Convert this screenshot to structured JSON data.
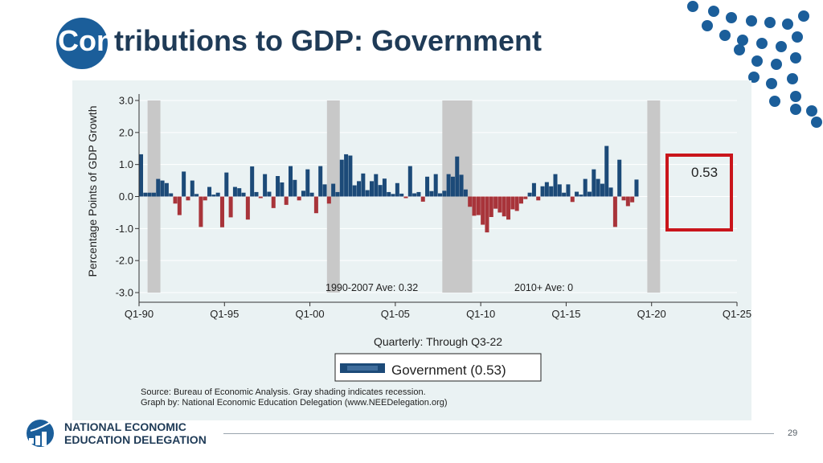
{
  "slide": {
    "title_part1": "Con",
    "title_part2": "tributions to GDP: Government",
    "page_number": "29",
    "org_line1": "NATIONAL ECONOMIC",
    "org_line2": "EDUCATION DELEGATION"
  },
  "colors": {
    "positive": "#1c4a78",
    "negative": "#a8343a",
    "recession": "#c8c8c8",
    "highlight": "#c9151b",
    "accent": "#1b5e9a"
  },
  "chart_data": {
    "type": "bar",
    "y_axis_label": "Percentage Points of GDP Growth",
    "x_axis_title": "Quarterly: Through Q3-22",
    "ylim": [
      -3.0,
      3.0
    ],
    "y_ticks": [
      "3.0",
      "2.0",
      "1.0",
      "0.0",
      "-1.0",
      "-2.0",
      "-3.0"
    ],
    "x_ticks": [
      "Q1-90",
      "Q1-95",
      "Q1-00",
      "Q1-05",
      "Q1-10",
      "Q1-15",
      "Q1-20",
      "Q1-25"
    ],
    "x_start_year": 1990,
    "x_end_year": 2025,
    "series_name": "Government (0.53)",
    "start_quarter": "Q1-90",
    "values": [
      1.32,
      0.12,
      0.12,
      0.12,
      0.55,
      0.5,
      0.42,
      0.1,
      -0.22,
      -0.58,
      0.78,
      -0.12,
      0.5,
      0.08,
      -0.95,
      -0.12,
      0.3,
      0.06,
      0.12,
      -0.96,
      0.75,
      -0.65,
      0.3,
      0.26,
      0.12,
      -0.72,
      0.94,
      0.14,
      -0.05,
      0.7,
      0.15,
      -0.36,
      0.64,
      0.44,
      -0.26,
      0.95,
      0.52,
      -0.12,
      0.18,
      0.85,
      0.12,
      -0.52,
      0.95,
      0.38,
      -0.22,
      0.4,
      0.14,
      1.15,
      1.32,
      1.28,
      0.35,
      0.48,
      0.72,
      0.2,
      0.48,
      0.7,
      0.36,
      0.56,
      0.14,
      0.08,
      0.42,
      0.09,
      -0.05,
      0.95,
      0.1,
      0.14,
      -0.16,
      0.62,
      0.17,
      0.7,
      0.1,
      0.18,
      0.7,
      0.62,
      1.25,
      0.68,
      0.22,
      -0.32,
      -0.6,
      -0.58,
      -0.88,
      -1.12,
      -0.64,
      -0.38,
      -0.5,
      -0.62,
      -0.72,
      -0.4,
      -0.45,
      -0.22,
      -0.08,
      0.12,
      0.42,
      -0.12,
      0.32,
      0.45,
      0.32,
      0.7,
      0.38,
      0.12,
      0.38,
      -0.17,
      0.15,
      0.06,
      0.55,
      0.15,
      0.85,
      0.55,
      0.4,
      1.58,
      0.28,
      -0.95,
      1.15,
      -0.12,
      -0.3,
      -0.18,
      0.53
    ],
    "recessions": [
      {
        "start": 1990.5,
        "end": 1991.25
      },
      {
        "start": 2001.0,
        "end": 2001.75
      },
      {
        "start": 2007.75,
        "end": 2009.5
      },
      {
        "start": 2019.75,
        "end": 2020.5
      }
    ],
    "recession_top": [
      3.0,
      3.0,
      3.0,
      3.0
    ],
    "annotations": {
      "ave_1990_2007": "1990-2007 Ave: 0.32",
      "ave_2010": "2010+ Ave: 0",
      "highlight_value": "0.53"
    },
    "source_line1": "Source: Bureau of Economic Analysis. Gray shading indicates recession.",
    "source_line2": "Graph by: National Economic Education Delegation (www.NEEDelegation.org)"
  }
}
